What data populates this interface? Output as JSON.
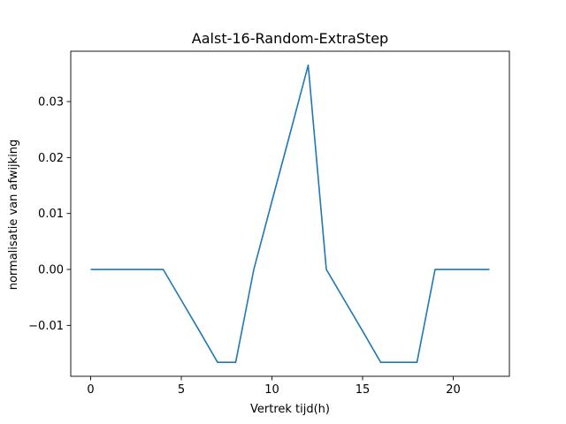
{
  "chart_data": {
    "type": "line",
    "title": "Aalst-16-Random-ExtraStep",
    "xlabel": "Vertrek tijd(h)",
    "ylabel": "normalisatie van afwijking",
    "xlim": [
      -1.1,
      23.1
    ],
    "ylim": [
      -0.0191,
      0.039
    ],
    "xticks": [
      0,
      5,
      10,
      15,
      20
    ],
    "xtick_labels": [
      "0",
      "5",
      "10",
      "15",
      "20"
    ],
    "yticks": [
      -0.01,
      0.0,
      0.01,
      0.02,
      0.03
    ],
    "ytick_labels": [
      "−0.01",
      "0.00",
      "0.01",
      "0.02",
      "0.03"
    ],
    "grid": false,
    "series": [
      {
        "color": "#1f77b4",
        "x": [
          0,
          1,
          2,
          3,
          4,
          5,
          6,
          7,
          8,
          9,
          10,
          11,
          12,
          13,
          14,
          15,
          16,
          17,
          18,
          19,
          20,
          21,
          22
        ],
        "y": [
          0,
          0,
          0,
          0,
          0,
          -0.0055,
          -0.011,
          -0.0166,
          -0.0166,
          0,
          0.0122,
          0.0243,
          0.0365,
          0,
          -0.0055,
          -0.011,
          -0.0166,
          -0.0166,
          -0.0166,
          0,
          0,
          0,
          0
        ]
      }
    ]
  }
}
